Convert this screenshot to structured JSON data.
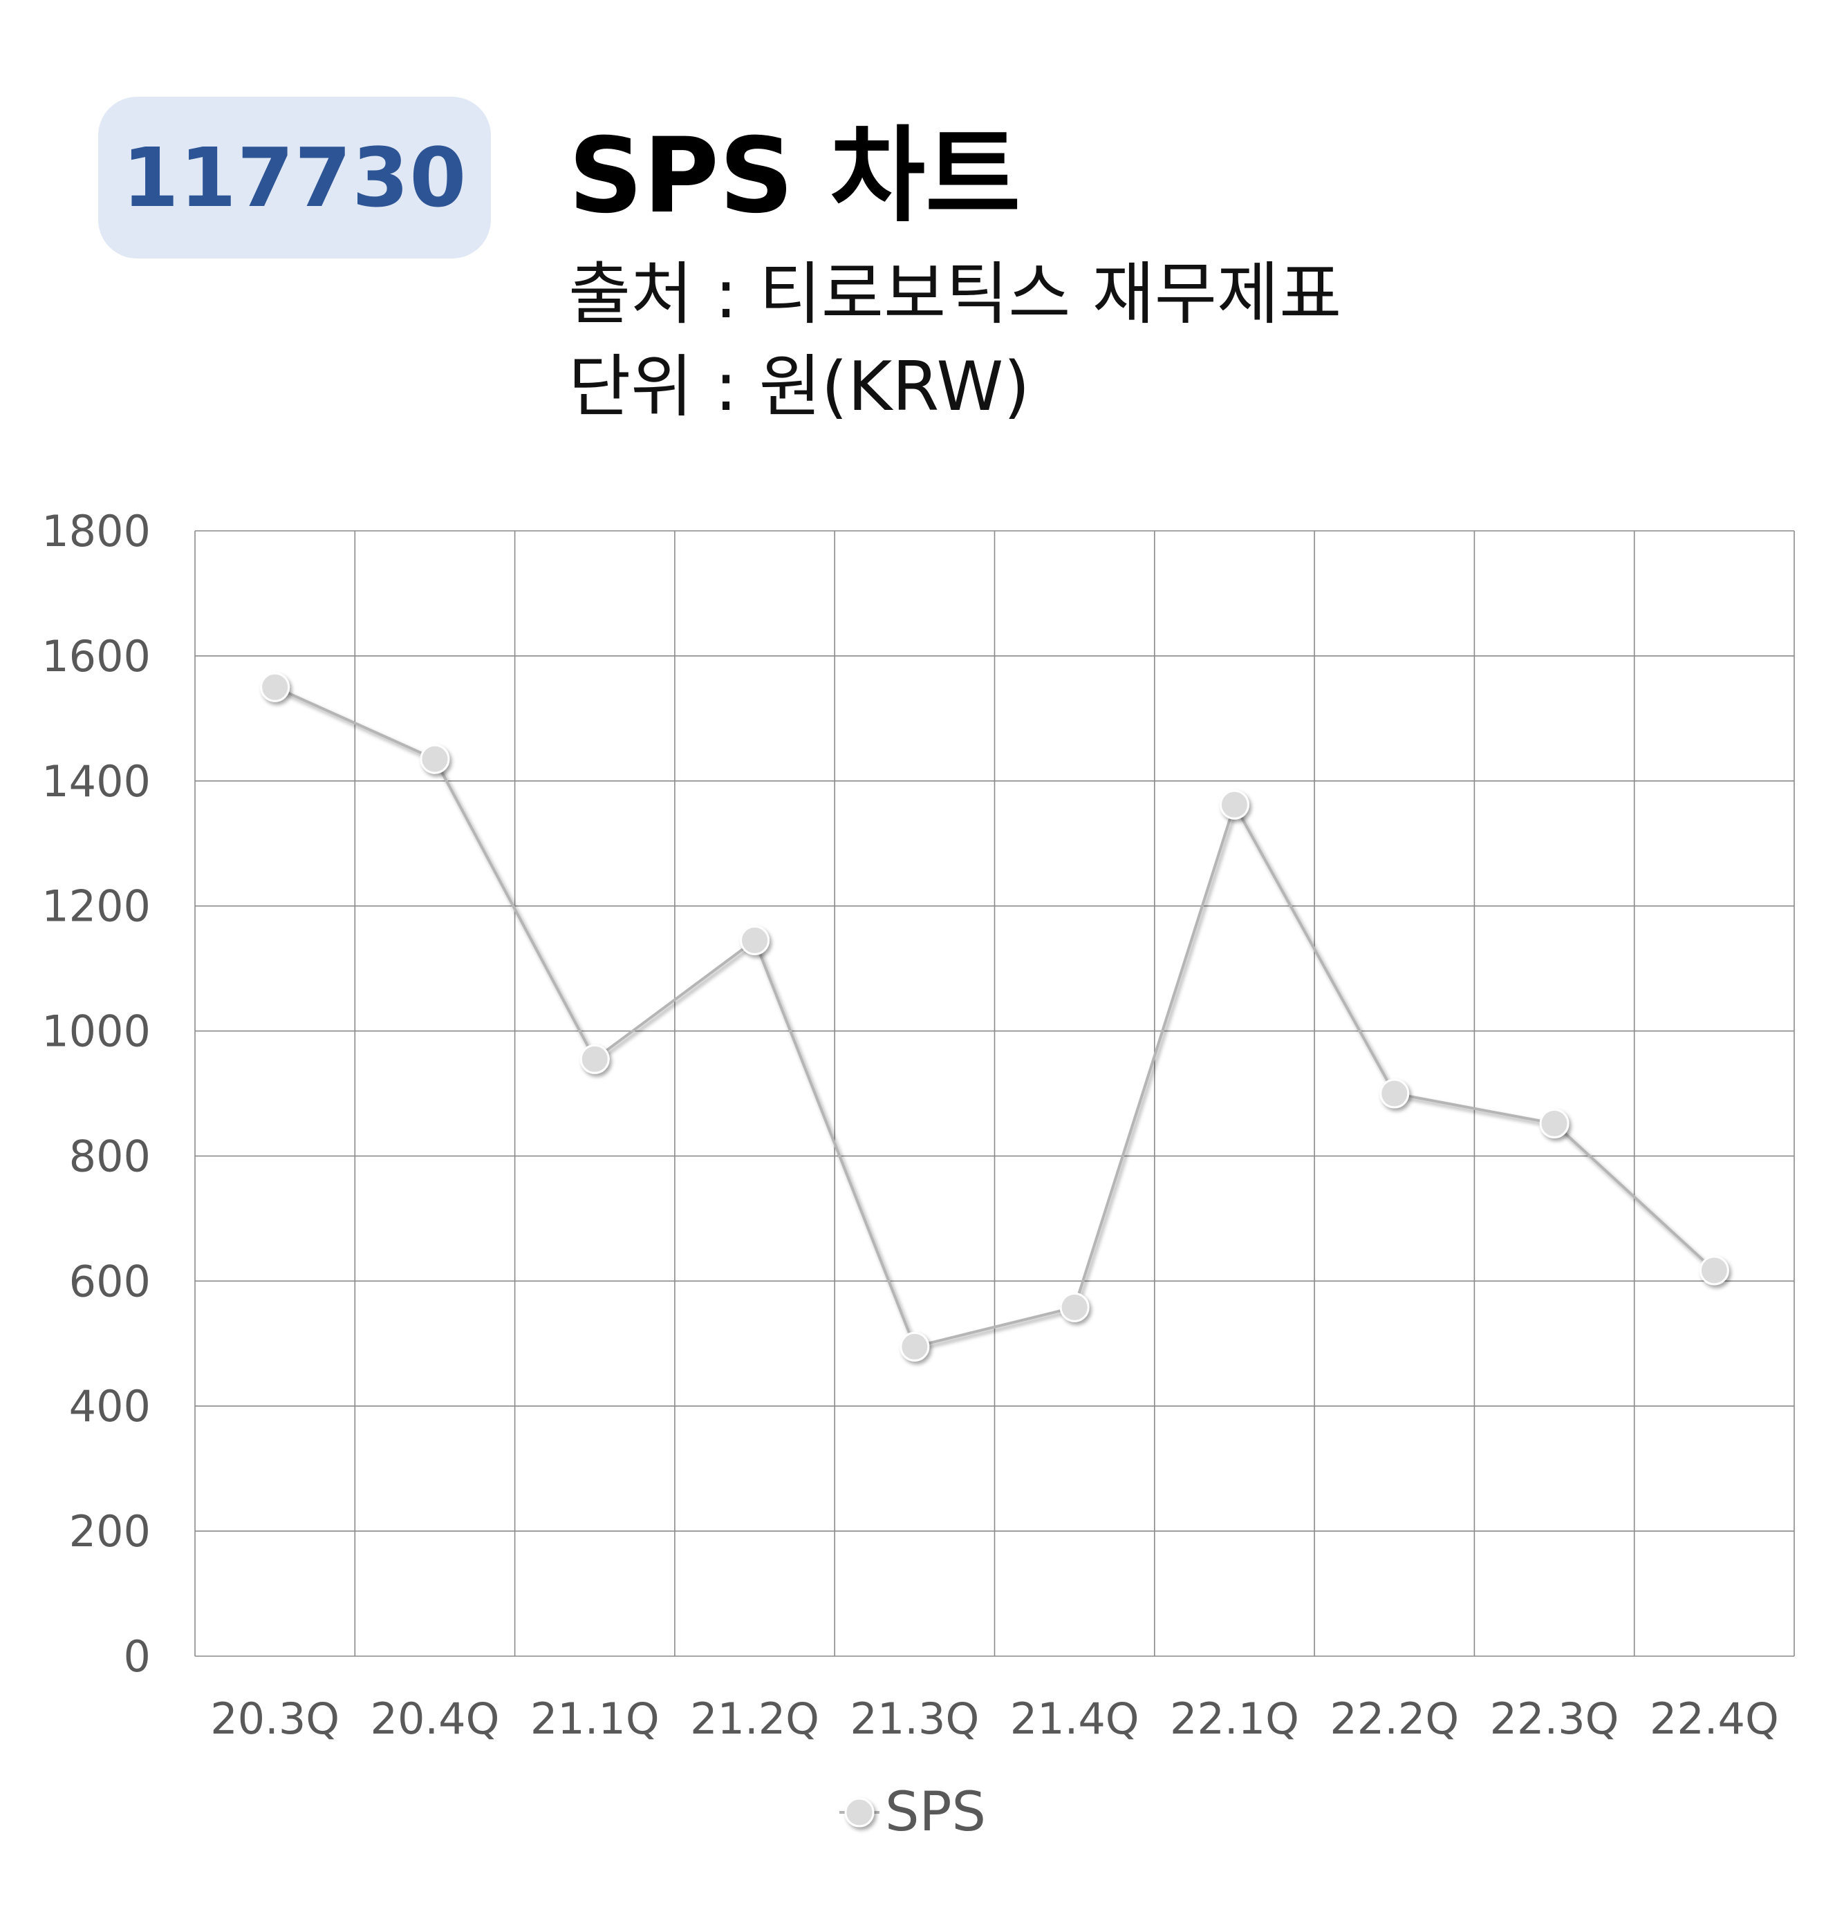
{
  "header": {
    "code": "117730",
    "title": "SPS 차트",
    "source": "출처 : 티로보틱스 재무제표",
    "unit": "단위 : 원(KRW)"
  },
  "colors": {
    "badge_bg": "#e1e8f5",
    "badge_text": "#2d5595",
    "grid": "#8a8a8a",
    "line": "#b5b5b5",
    "marker_fill": "#dcdcdc",
    "axis_text": "#595959"
  },
  "chart_data": {
    "type": "line",
    "categories": [
      "20.3Q",
      "20.4Q",
      "21.1Q",
      "21.2Q",
      "21.3Q",
      "21.4Q",
      "22.1Q",
      "22.2Q",
      "22.3Q",
      "22.4Q"
    ],
    "series": [
      {
        "name": "SPS",
        "values": [
          1550,
          1435,
          955,
          1145,
          495,
          558,
          1362,
          900,
          852,
          617
        ]
      }
    ],
    "ylim": [
      0,
      1800
    ],
    "yticks": [
      0,
      200,
      400,
      600,
      800,
      1000,
      1200,
      1400,
      1600,
      1800
    ],
    "grid": true,
    "legend": "bottom-center"
  }
}
